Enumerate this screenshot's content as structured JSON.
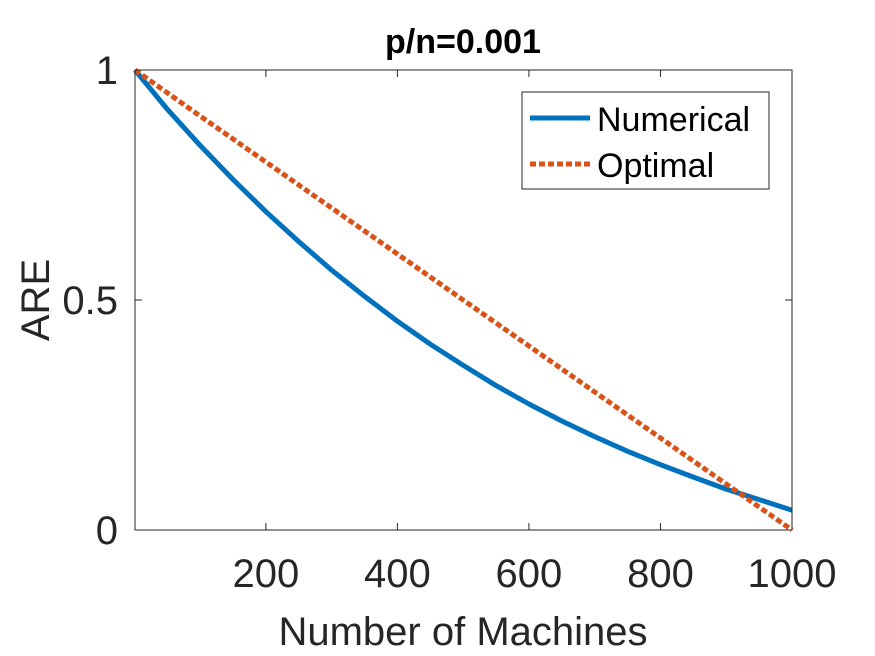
{
  "chart_data": {
    "type": "line",
    "title": "p/n=0.001",
    "xlabel": "Number of Machines",
    "ylabel": "ARE",
    "xlim": [
      1,
      1000
    ],
    "ylim": [
      0,
      1
    ],
    "xticks": [
      200,
      400,
      600,
      800,
      1000
    ],
    "yticks": [
      0,
      0.5,
      1
    ],
    "xtick_labels": [
      "200",
      "400",
      "600",
      "800",
      "1000"
    ],
    "ytick_labels": [
      "0",
      "0.5",
      "1"
    ],
    "grid": false,
    "legend": {
      "position": "top-right"
    },
    "series": [
      {
        "name": "Numerical",
        "color": "#0072BD",
        "style": "solid",
        "x": [
          1,
          50,
          100,
          150,
          200,
          250,
          300,
          350,
          400,
          450,
          500,
          550,
          600,
          650,
          700,
          750,
          800,
          850,
          900,
          950,
          1000
        ],
        "y": [
          1.0,
          0.915,
          0.836,
          0.762,
          0.692,
          0.627,
          0.565,
          0.508,
          0.454,
          0.404,
          0.358,
          0.314,
          0.274,
          0.237,
          0.203,
          0.171,
          0.142,
          0.115,
          0.089,
          0.066,
          0.043
        ]
      },
      {
        "name": "Optimal",
        "color": "#D95319",
        "style": "dotted",
        "x": [
          1,
          100,
          200,
          300,
          400,
          500,
          600,
          700,
          800,
          900,
          1000
        ],
        "y": [
          1.0,
          0.9,
          0.8,
          0.7,
          0.6,
          0.5,
          0.4,
          0.3,
          0.2,
          0.1,
          0.0
        ]
      }
    ]
  }
}
